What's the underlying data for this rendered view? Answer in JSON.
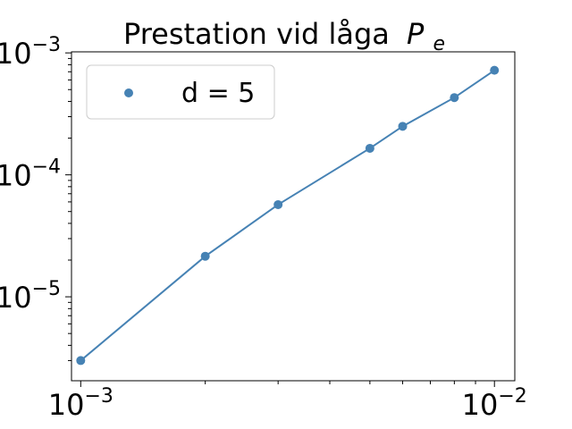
{
  "chart_data": {
    "type": "line",
    "title": "Prestation vid låga",
    "title_math": "P",
    "title_math_sub": "e",
    "xlabel": "",
    "ylabel": "",
    "x_scale": "log",
    "y_scale": "log",
    "xlim": [
      0.00095,
      0.0112
    ],
    "ylim": [
      2.05e-06,
      0.00102
    ],
    "x_ticks": [
      {
        "value": 0.001,
        "base": "10",
        "exp": "−3"
      },
      {
        "value": 0.01,
        "base": "10",
        "exp": "−2"
      }
    ],
    "y_ticks": [
      {
        "value": 1e-05,
        "base": "10",
        "exp": "−5"
      },
      {
        "value": 0.0001,
        "base": "10",
        "exp": "−4"
      },
      {
        "value": 0.001,
        "base": "10",
        "exp": "−3"
      }
    ],
    "grid": false,
    "legend_position": "top-left",
    "series": [
      {
        "name": "d = 5",
        "color": "#4682b4",
        "marker": "circle",
        "x": [
          0.001,
          0.002,
          0.003,
          0.005,
          0.006,
          0.008,
          0.01
        ],
        "y": [
          3e-06,
          2.15e-05,
          5.7e-05,
          0.000165,
          0.00025,
          0.00043,
          0.00072
        ]
      }
    ]
  }
}
